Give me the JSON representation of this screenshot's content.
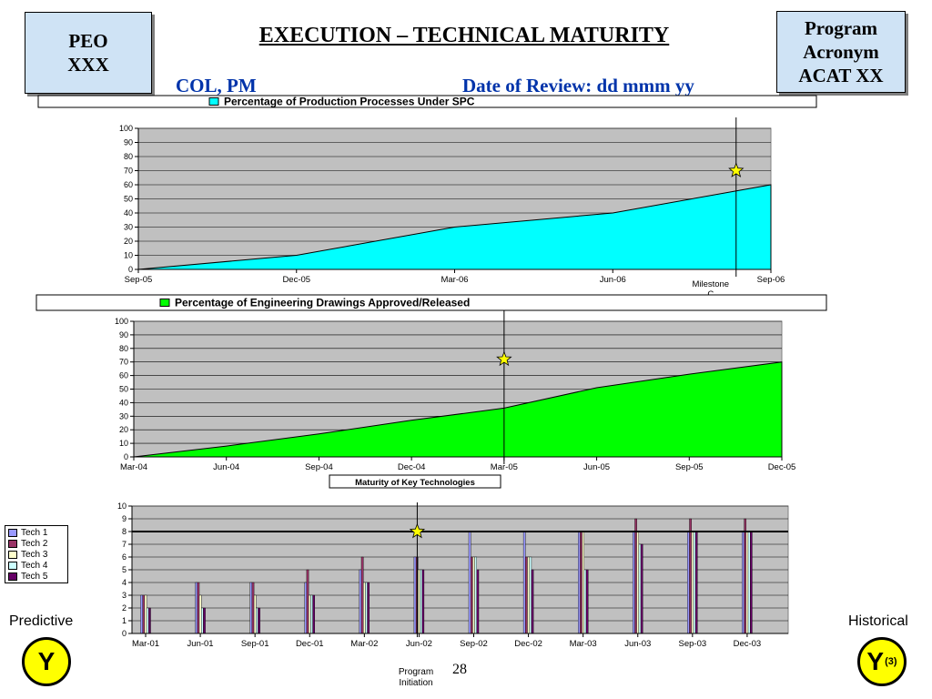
{
  "header": {
    "peo_line1": "PEO",
    "peo_line2": "XXX",
    "program_line1": "Program",
    "program_line2": "Acronym",
    "program_line3": "ACAT XX",
    "title": "EXECUTION – TECHNICAL MATURITY",
    "col_pm": "COL, PM",
    "date_review": "Date of Review: dd mmm yy"
  },
  "footer": {
    "predictive": "Predictive",
    "historical": "Historical",
    "predictive_rating": "Y",
    "historical_rating": "Y",
    "historical_note": "(3)",
    "page_number": "28",
    "program_initiation": "Program Initiation",
    "milestone_c": "Milestone C"
  },
  "colors": {
    "spc_fill": "#00ffff",
    "drawings_fill": "#00ff00",
    "plot_bg": "#c0c0c0",
    "star": "#ffff00"
  },
  "chart_data": [
    {
      "type": "area",
      "title": "Percentage of Production Processes Under SPC",
      "x": [
        "Sep-05",
        "Dec-05",
        "Mar-06",
        "Jun-06",
        "Sep-06"
      ],
      "series": [
        {
          "name": "Percentage of Production Processes Under SPC",
          "values": [
            0,
            10,
            30,
            40,
            60
          ]
        }
      ],
      "ylim": [
        0,
        100
      ],
      "yticks": [
        0,
        10,
        20,
        30,
        40,
        50,
        60,
        70,
        80,
        90,
        100
      ],
      "milestone": {
        "label": "Milestone C",
        "x": 3.78
      },
      "star": {
        "x": 3.78,
        "y": 70
      },
      "legend": "top"
    },
    {
      "type": "area",
      "title": "Percentage of Engineering Drawings Approved/Released",
      "x": [
        "Mar-04",
        "Jun-04",
        "Sep-04",
        "Dec-04",
        "Mar-05",
        "Jun-05",
        "Sep-05",
        "Dec-05"
      ],
      "series": [
        {
          "name": "Percentage of Engineering Drawings Approved/Released",
          "values": [
            0,
            8,
            17,
            27,
            36,
            51,
            61,
            70
          ]
        }
      ],
      "ylim": [
        0,
        100
      ],
      "yticks": [
        0,
        10,
        20,
        30,
        40,
        50,
        60,
        70,
        80,
        90,
        100
      ],
      "milestone": {
        "x": 4.0
      },
      "star": {
        "x": 4.0,
        "y": 72
      },
      "legend": "top"
    },
    {
      "type": "bar",
      "title": "Maturity of Key Technologies",
      "categories": [
        "Mar-01",
        "Jun-01",
        "Sep-01",
        "Dec-01",
        "Mar-02",
        "Jun-02",
        "Sep-02",
        "Dec-02",
        "Mar-03",
        "Jun-03",
        "Sep-03",
        "Dec-03"
      ],
      "series": [
        {
          "name": "Tech 1",
          "color": "#9999ff",
          "values": [
            3,
            4,
            4,
            4,
            5,
            6,
            8,
            8,
            8,
            8,
            8,
            8
          ]
        },
        {
          "name": "Tech 2",
          "color": "#993366",
          "values": [
            3,
            4,
            4,
            5,
            6,
            6,
            6,
            6,
            8,
            9,
            9,
            9
          ]
        },
        {
          "name": "Tech 3",
          "color": "#ffffcc",
          "values": [
            3,
            3,
            3,
            3,
            4,
            5,
            6,
            6,
            8,
            8,
            8,
            8
          ]
        },
        {
          "name": "Tech 4",
          "color": "#ccffff",
          "values": [
            2,
            2,
            2,
            3,
            4,
            5,
            6,
            6,
            5,
            7,
            8,
            8
          ]
        },
        {
          "name": "Tech 5",
          "color": "#660066",
          "values": [
            2,
            2,
            2,
            3,
            4,
            5,
            5,
            5,
            5,
            7,
            8,
            8
          ]
        }
      ],
      "threshold": 8,
      "ylim": [
        0,
        10
      ],
      "yticks": [
        0,
        1,
        2,
        3,
        4,
        5,
        6,
        7,
        8,
        9,
        10
      ],
      "milestone": {
        "x": 5
      },
      "star": {
        "x": 5,
        "y": 8
      },
      "legend": "left"
    }
  ]
}
